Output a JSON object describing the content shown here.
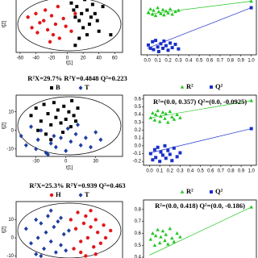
{
  "chart_data": [
    {
      "type": "scatter",
      "xlabel": "t[1]",
      "ylabel": "t[2]",
      "xlim": [
        -65,
        70
      ],
      "ylim": [
        -40,
        40
      ],
      "xticks": [
        -60,
        -40,
        -20,
        0,
        20,
        40,
        60
      ],
      "ellipse": true,
      "series": [
        {
          "color": "#e0191b",
          "marker": "circle",
          "x": [
            -50,
            -45,
            -40,
            -38,
            -30,
            -28,
            -25,
            -20,
            -18,
            -15,
            -12,
            -10,
            -5,
            -2,
            5,
            -35,
            -22,
            10
          ],
          "values": [
            10,
            -5,
            15,
            -12,
            5,
            20,
            -8,
            12,
            -15,
            0,
            25,
            -20,
            8,
            -3,
            -10,
            2,
            -25,
            15
          ]
        },
        {
          "color": "#000000",
          "marker": "square",
          "x": [
            5,
            8,
            10,
            12,
            15,
            18,
            20,
            22,
            25,
            28,
            30,
            32,
            35,
            38,
            40,
            15,
            25,
            10,
            45,
            20,
            55
          ],
          "values": [
            30,
            20,
            10,
            25,
            5,
            15,
            -5,
            35,
            20,
            0,
            10,
            28,
            15,
            5,
            -10,
            -20,
            -15,
            -30,
            25,
            38,
            -15
          ]
        }
      ]
    },
    {
      "type": "scatter",
      "xlim": [
        -0.06,
        1.05
      ],
      "ylim": [
        -0.2,
        0.7
      ],
      "xticks": [
        {
          "value": 0,
          "label": "0.0"
        },
        0.1,
        0.2,
        0.3,
        0.4,
        0.5,
        0.6,
        0.7,
        0.8,
        0.9,
        {
          "value": 1,
          "label": "1.0"
        }
      ],
      "series": [
        {
          "color": "#22c722",
          "marker": "triangle",
          "x": [
            0.01,
            0.03,
            0.05,
            0.06,
            0.08,
            0.1,
            0.11,
            0.13,
            0.15,
            0.16,
            0.18,
            0.2,
            0.22,
            0.24,
            0.27,
            0.3,
            1.0
          ],
          "values": [
            0.45,
            0.5,
            0.42,
            0.48,
            0.4,
            0.52,
            0.46,
            0.43,
            0.49,
            0.41,
            0.47,
            0.44,
            0.5,
            0.42,
            0.46,
            0.48,
            0.62
          ]
        },
        {
          "color": "#1a2fc8",
          "marker": "square",
          "x": [
            0.01,
            0.03,
            0.05,
            0.06,
            0.08,
            0.1,
            0.11,
            0.13,
            0.15,
            0.16,
            0.18,
            0.2,
            0.22,
            0.24,
            0.27,
            0.3,
            1.0
          ],
          "values": [
            -0.05,
            -0.1,
            0.0,
            -0.12,
            0.02,
            -0.08,
            -0.15,
            -0.03,
            -0.1,
            0.01,
            -0.06,
            -0.13,
            -0.02,
            -0.09,
            -0.04,
            -0.11,
            0.52
          ]
        },
        {
          "color": "#22c722",
          "mode": "line",
          "x": [
            0,
            1
          ],
          "values": [
            0.42,
            0.62
          ]
        },
        {
          "color": "#1a2fc8",
          "mode": "line",
          "x": [
            0,
            1
          ],
          "values": [
            -0.1,
            0.52
          ]
        }
      ]
    },
    {
      "type": "scatter",
      "subtitle": "R²X=29.7% R²Y=0.4848 Q²=0.223",
      "xlabel": "t[1]",
      "ylabel": "t[2]",
      "xlim": [
        -50,
        57
      ],
      "ylim": [
        -14,
        19
      ],
      "xticks": [
        -30,
        0,
        30
      ],
      "yticks": [
        10,
        0,
        -10
      ],
      "ellipse": true,
      "series": [
        {
          "name": "B",
          "color": "#000000",
          "marker": "square",
          "x": [
            -35,
            -30,
            -25,
            -22,
            -18,
            -15,
            -12,
            -10,
            -8,
            -5,
            -2,
            0,
            3,
            5,
            8,
            10,
            -20,
            -28,
            -15,
            12,
            6,
            -3
          ],
          "values": [
            8,
            12,
            5,
            14,
            9,
            3,
            15,
            7,
            11,
            4,
            13,
            6,
            10,
            2,
            8,
            5,
            -2,
            0,
            -5,
            12,
            16,
            -1
          ]
        },
        {
          "name": "T",
          "color": "#1f3fa0",
          "marker": "diamond",
          "x": [
            -45,
            -40,
            -35,
            -30,
            -28,
            -25,
            -20,
            -15,
            -12,
            -10,
            -5,
            0,
            5,
            10,
            15,
            20,
            25,
            30,
            35,
            -18,
            2,
            12
          ],
          "values": [
            -3,
            -8,
            2,
            -10,
            -5,
            0,
            -12,
            -7,
            -3,
            -9,
            -4,
            -11,
            -6,
            -2,
            -8,
            -4,
            -9,
            -1,
            -5,
            -13,
            1,
            3
          ]
        }
      ]
    },
    {
      "type": "scatter",
      "annotation": "R²=(0.0, 0.357) Q²=(0.0, -0.0925)",
      "xlim": [
        -0.06,
        1.05
      ],
      "ylim": [
        -0.25,
        0.65
      ],
      "xticks": [
        {
          "value": 0,
          "label": "0.0"
        },
        0.1,
        0.2,
        0.3,
        0.4,
        0.5,
        0.6,
        0.7,
        0.8,
        0.9,
        {
          "value": 1,
          "label": "1.0"
        }
      ],
      "yticks": [
        0.6,
        0.5,
        0.4,
        0.3,
        0.2,
        0.1,
        {
          "value": 0,
          "label": "0.0"
        },
        -0.1,
        -0.2
      ],
      "series": [
        {
          "name": "R²",
          "color": "#22c722",
          "marker": "triangle",
          "x": [
            0.01,
            0.03,
            0.05,
            0.06,
            0.08,
            0.1,
            0.11,
            0.13,
            0.15,
            0.16,
            0.18,
            0.2,
            0.22,
            0.24,
            0.27,
            0.3,
            1.0
          ],
          "values": [
            0.36,
            0.42,
            0.33,
            0.4,
            0.45,
            0.31,
            0.38,
            0.43,
            0.35,
            0.41,
            0.3,
            0.44,
            0.37,
            0.34,
            0.4,
            0.36,
            0.58
          ]
        },
        {
          "name": "Q²",
          "color": "#1a2fc8",
          "marker": "square",
          "x": [
            0.01,
            0.03,
            0.05,
            0.06,
            0.08,
            0.1,
            0.11,
            0.13,
            0.15,
            0.16,
            0.18,
            0.2,
            0.22,
            0.24,
            0.27,
            0.3,
            1.0
          ],
          "values": [
            -0.1,
            -0.18,
            -0.05,
            -0.15,
            -0.02,
            -0.2,
            -0.08,
            -0.12,
            0.0,
            -0.16,
            -0.06,
            -0.11,
            -0.19,
            -0.03,
            -0.14,
            -0.09,
            0.22
          ]
        },
        {
          "color": "#22c722",
          "mode": "line",
          "x": [
            0,
            1
          ],
          "values": [
            0.357,
            0.58
          ]
        },
        {
          "color": "#1a2fc8",
          "mode": "line",
          "x": [
            0,
            1
          ],
          "values": [
            -0.0925,
            0.22
          ]
        }
      ]
    },
    {
      "type": "scatter",
      "subtitle": "R²X=25.3% R²Y=0.939 Q²=0.463",
      "ylabel": "t[2]",
      "xlim": [
        -50,
        57
      ],
      "ylim": [
        -12,
        20
      ],
      "yticks": [
        10,
        0,
        -10
      ],
      "ellipse": true,
      "series": [
        {
          "name": "H",
          "color": "#e0191b",
          "marker": "circle",
          "x": [
            5,
            10,
            12,
            15,
            18,
            20,
            22,
            25,
            28,
            30,
            32,
            35,
            38,
            40,
            15,
            25,
            8,
            30,
            45,
            20
          ],
          "values": [
            10,
            5,
            14,
            -2,
            8,
            12,
            0,
            6,
            -5,
            10,
            3,
            -3,
            7,
            0,
            -8,
            15,
            -6,
            -9,
            4,
            -10
          ]
        },
        {
          "name": "T",
          "color": "#1f3fa0",
          "marker": "diamond",
          "x": [
            -40,
            -35,
            -30,
            -28,
            -25,
            -22,
            -20,
            -18,
            -15,
            -12,
            -10,
            -8,
            -5,
            -2,
            0,
            3,
            -25,
            -15,
            -30,
            -5
          ],
          "values": [
            5,
            -3,
            10,
            0,
            8,
            -6,
            3,
            12,
            -2,
            6,
            -8,
            9,
            -4,
            2,
            -7,
            4,
            -10,
            15,
            -9,
            11
          ]
        }
      ]
    },
    {
      "type": "scatter",
      "annotation": "R²=(0.0, 0.418) Q²=(0.0, -0.186)",
      "xlim": [
        -0.06,
        1.05
      ],
      "ylim": [
        0.38,
        0.88
      ],
      "yticks": [
        0.8,
        0.7,
        0.6,
        0.5,
        0.4
      ],
      "series": [
        {
          "name": "R²",
          "color": "#22c722",
          "marker": "triangle",
          "x": [
            0.01,
            0.03,
            0.05,
            0.06,
            0.08,
            0.1,
            0.11,
            0.13,
            0.15,
            0.16,
            0.18,
            0.2,
            0.22,
            0.24,
            0.27,
            0.3,
            1.0
          ],
          "values": [
            0.55,
            0.6,
            0.5,
            0.58,
            0.63,
            0.52,
            0.57,
            0.62,
            0.54,
            0.59,
            0.51,
            0.64,
            0.56,
            0.53,
            0.6,
            0.57,
            0.82
          ]
        },
        {
          "name": "Q²",
          "color": "#1a2fc8",
          "marker": "square",
          "x": [],
          "values": []
        },
        {
          "color": "#22c722",
          "mode": "line",
          "x": [
            0,
            1
          ],
          "values": [
            0.418,
            0.82
          ]
        }
      ]
    }
  ]
}
